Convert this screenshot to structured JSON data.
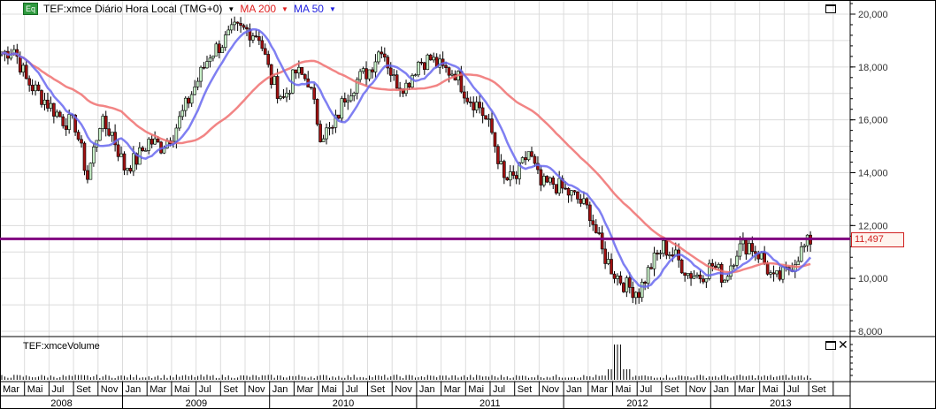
{
  "header": {
    "badge": "Eq",
    "symbol_label": "TEF:xmce Diário Hora Local (TMG+0)",
    "ma200_label": "MA 200",
    "ma50_label": "MA 50"
  },
  "volume_panel": {
    "title": "TEF:xmceVolume"
  },
  "colors": {
    "ma200": "#f07070",
    "ma50": "#6868f0",
    "level_line": "#800080",
    "up": "#c8f0c8",
    "down": "#a01010",
    "label_border": "#d02020"
  },
  "icons": {
    "maximize": "window-icon",
    "close": "close-icon",
    "dropdown": "triangle-down-icon"
  },
  "chart_data": {
    "type": "candlestick",
    "x_unit": "month",
    "start": "2008-03",
    "monthly_close": [
      18500,
      18700,
      17500,
      17000,
      16500,
      16000,
      15800,
      13800,
      15900,
      15500,
      14200,
      14500,
      15200,
      15000,
      15500,
      16500,
      17500,
      18500,
      18900,
      19400,
      19400,
      19200,
      17500,
      16800,
      17800,
      17500,
      15500,
      15600,
      16900,
      17500,
      17900,
      18800,
      17500,
      17300,
      18200,
      18300,
      17900,
      17800,
      16900,
      16500,
      15500,
      13700,
      13800,
      14800,
      13500,
      13600,
      13300,
      13000,
      12500,
      11000,
      10200,
      9700,
      9500,
      10500,
      11200,
      10800,
      10200,
      10100,
      10500,
      10000,
      11100,
      11300,
      10800,
      9900,
      10200,
      10900,
      11450
    ],
    "moving_averages": [
      "MA 200",
      "MA 50"
    ],
    "horizontal_line": 11497,
    "last_price_label": "11,497",
    "ylim": [
      7800,
      20500
    ],
    "y_ticks": [
      "20,000",
      "18,000",
      "16,000",
      "14,000",
      "12,000",
      "10,000",
      "8,000"
    ],
    "y_tick_values": [
      20000,
      18000,
      16000,
      14000,
      12000,
      10000,
      8000
    ],
    "x_month_labels": [
      "Mar",
      "Mai",
      "Jul",
      "Set",
      "Nov",
      "Jan",
      "Mar",
      "Mai",
      "Jul",
      "Set",
      "Nov",
      "Jan",
      "Mar",
      "Mai",
      "Jul",
      "Set",
      "Nov",
      "Jan",
      "Mar",
      "Mai",
      "Jul",
      "Set",
      "Nov",
      "Jan",
      "Mar",
      "Mai",
      "Jul",
      "Set",
      "Nov",
      "Jan",
      "Mar",
      "Mai",
      "Jul",
      "Set"
    ],
    "x_year_labels": [
      "2008",
      "2009",
      "2010",
      "2011",
      "2012",
      "2013"
    ],
    "grid": true
  }
}
